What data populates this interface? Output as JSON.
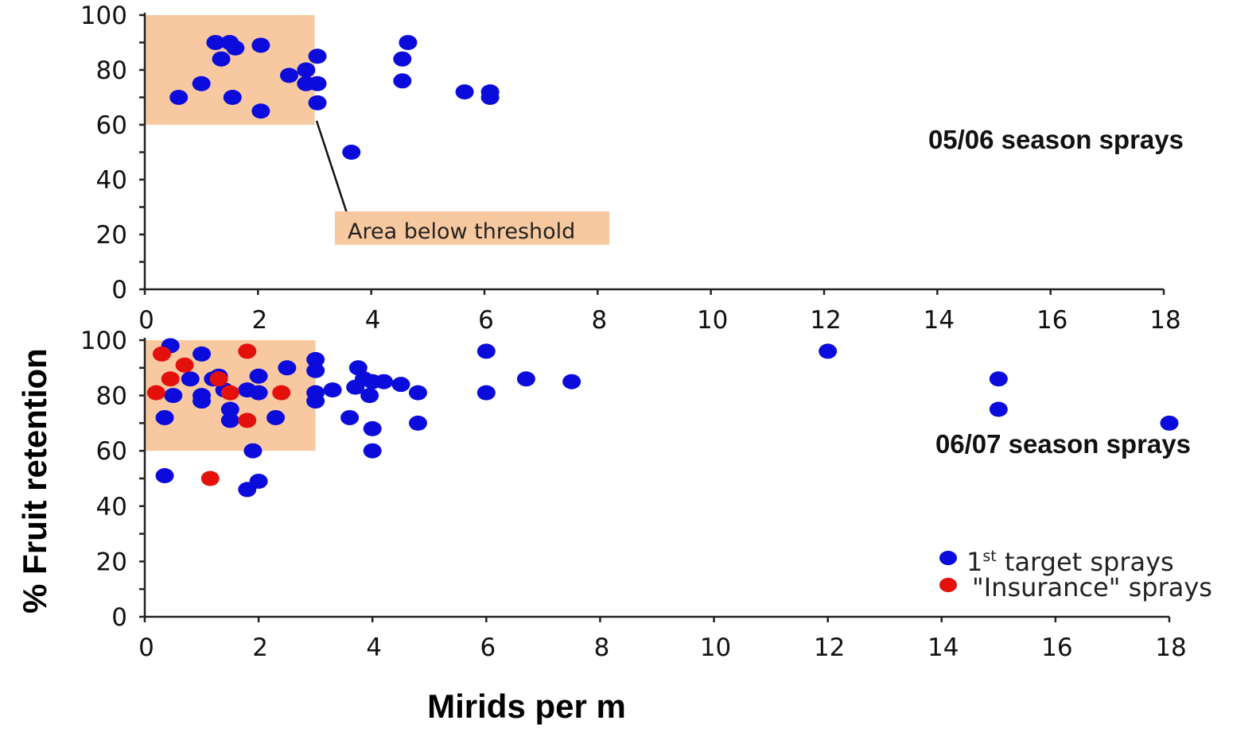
{
  "colors": {
    "target": "#0b0bdc",
    "insurance": "#e4100c",
    "threshold_fill": "#f8c9a0"
  },
  "legend": {
    "target_main": "1",
    "target_sup": "st",
    "target_rest": " target sprays",
    "insurance": "\"Insurance\" sprays"
  },
  "callout_label": "Area below threshold",
  "chart_data": [
    {
      "type": "scatter",
      "title": "05/06 season sprays",
      "xlim": [
        0,
        18
      ],
      "ylim": [
        0,
        100
      ],
      "xticks": [
        "0",
        "2",
        "4",
        "6",
        "8",
        "10",
        "12",
        "14",
        "16",
        "18"
      ],
      "yticks": [
        "0",
        "20",
        "40",
        "60",
        "80",
        "100"
      ],
      "threshold_region": {
        "x": [
          0,
          3
        ],
        "y": [
          60,
          100
        ]
      },
      "series": [
        {
          "key": "target",
          "points": [
            [
              0.6,
              70
            ],
            [
              1.0,
              75
            ],
            [
              1.25,
              90
            ],
            [
              1.35,
              84
            ],
            [
              1.5,
              90
            ],
            [
              1.6,
              88
            ],
            [
              1.55,
              70
            ],
            [
              2.05,
              89
            ],
            [
              2.05,
              65
            ],
            [
              2.55,
              78
            ],
            [
              2.85,
              80
            ],
            [
              2.85,
              75
            ],
            [
              3.05,
              85
            ],
            [
              3.05,
              75
            ],
            [
              3.05,
              68
            ],
            [
              3.65,
              50
            ],
            [
              4.55,
              84
            ],
            [
              4.55,
              76
            ],
            [
              4.65,
              90
            ],
            [
              5.65,
              72
            ],
            [
              6.1,
              72
            ],
            [
              6.1,
              70
            ]
          ]
        }
      ]
    },
    {
      "type": "scatter",
      "title": "06/07 season sprays",
      "xlim": [
        0,
        18
      ],
      "ylim": [
        0,
        100
      ],
      "xticks": [
        "0",
        "2",
        "4",
        "6",
        "8",
        "10",
        "12",
        "14",
        "16",
        "18"
      ],
      "yticks": [
        "0",
        "20",
        "40",
        "60",
        "80",
        "100"
      ],
      "ylabel": "% Fruit retention",
      "xlabel": "Mirids per m",
      "threshold_region": {
        "x": [
          0,
          3
        ],
        "y": [
          60,
          100
        ]
      },
      "series": [
        {
          "key": "target",
          "name": "1st target sprays",
          "points": [
            [
              0.45,
              98
            ],
            [
              1.0,
              95
            ],
            [
              0.35,
              72
            ],
            [
              0.5,
              80
            ],
            [
              0.8,
              86
            ],
            [
              1.0,
              80
            ],
            [
              1.0,
              78
            ],
            [
              1.2,
              86
            ],
            [
              1.3,
              87
            ],
            [
              1.4,
              82
            ],
            [
              1.5,
              75
            ],
            [
              1.5,
              71
            ],
            [
              1.8,
              82
            ],
            [
              2.0,
              87
            ],
            [
              2.0,
              81
            ],
            [
              1.9,
              60
            ],
            [
              2.0,
              49
            ],
            [
              1.8,
              46
            ],
            [
              0.35,
              51
            ],
            [
              2.3,
              72
            ],
            [
              2.5,
              90
            ],
            [
              3.0,
              93
            ],
            [
              3.0,
              89
            ],
            [
              3.0,
              81
            ],
            [
              3.0,
              78
            ],
            [
              3.3,
              82
            ],
            [
              3.6,
              72
            ],
            [
              3.7,
              83
            ],
            [
              3.75,
              90
            ],
            [
              3.85,
              86
            ],
            [
              3.95,
              80
            ],
            [
              4.0,
              85
            ],
            [
              4.0,
              68
            ],
            [
              4.0,
              60
            ],
            [
              4.2,
              85
            ],
            [
              4.5,
              84
            ],
            [
              4.8,
              81
            ],
            [
              4.8,
              70
            ],
            [
              6.0,
              96
            ],
            [
              6.0,
              81
            ],
            [
              6.7,
              86
            ],
            [
              7.5,
              85
            ],
            [
              12.0,
              96
            ],
            [
              15.0,
              86
            ],
            [
              15.0,
              75
            ],
            [
              18.0,
              70
            ]
          ]
        },
        {
          "key": "insurance",
          "name": "\"Insurance\" sprays",
          "points": [
            [
              0.3,
              95
            ],
            [
              0.7,
              91
            ],
            [
              0.45,
              86
            ],
            [
              0.2,
              81
            ],
            [
              1.3,
              86
            ],
            [
              1.5,
              81
            ],
            [
              1.8,
              96
            ],
            [
              1.8,
              71
            ],
            [
              2.4,
              81
            ],
            [
              1.15,
              50
            ]
          ]
        }
      ]
    }
  ]
}
